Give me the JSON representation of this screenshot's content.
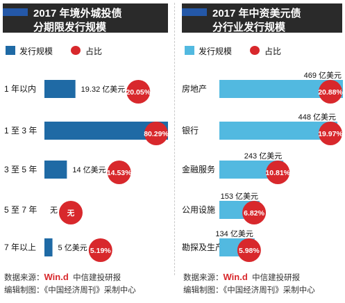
{
  "left_panel": {
    "title_line1": "2017 年境外城投债",
    "title_line2": "分期限发行规模",
    "legend_bar": "发行规模",
    "legend_dot": "占比",
    "bar_color": "#1f6aa5",
    "dot_color": "#d8282c"
  },
  "right_panel": {
    "title_line1": "2017 年中资美元债",
    "title_line2": "分行业发行规模",
    "legend_bar": "发行规模",
    "legend_dot": "占比",
    "bar_color": "#52b9e0",
    "dot_color": "#d8282c"
  },
  "footer": {
    "source_prefix": "数据来源：",
    "source_brand": "Win.d",
    "source_suffix": "中信建投研报",
    "editor_left": "编辑制图：《中国经济周刊》采制中心",
    "editor_right": "编辑制图：《中国经济周刊》采制中心"
  },
  "chart_data": [
    {
      "type": "bar",
      "orientation": "horizontal",
      "categories": [
        "1 年以内",
        "1 至 3 年",
        "3 至 5 年",
        "5 至 7 年",
        "7 年以上"
      ],
      "series": [
        {
          "name": "发行规模",
          "values": [
            19.32,
            77,
            14,
            0,
            5
          ],
          "labels": [
            "19.32 亿美元",
            "77 亿美元",
            "14 亿美元",
            "无",
            "5 亿美元"
          ]
        },
        {
          "name": "占比",
          "values": [
            20.05,
            80.29,
            14.53,
            null,
            5.19
          ],
          "labels": [
            "20.05%",
            "80.29%",
            "14.53%",
            "无",
            "5.19%"
          ]
        }
      ],
      "unit": "亿美元"
    },
    {
      "type": "bar",
      "orientation": "horizontal",
      "categories": [
        "房地产",
        "银行",
        "金融服务",
        "公用设施",
        "勘探及生产"
      ],
      "series": [
        {
          "name": "发行规模",
          "values": [
            469,
            448,
            243,
            153,
            134
          ],
          "labels": [
            "469 亿美元",
            "448 亿美元",
            "243 亿美元",
            "153 亿美元",
            "134 亿美元"
          ]
        },
        {
          "name": "占比",
          "values": [
            20.88,
            19.97,
            10.81,
            6.82,
            5.98
          ],
          "labels": [
            "20.88%",
            "19.97%",
            "10.81%",
            "6.82%",
            "5.98%"
          ]
        }
      ],
      "unit": "亿美元"
    }
  ]
}
